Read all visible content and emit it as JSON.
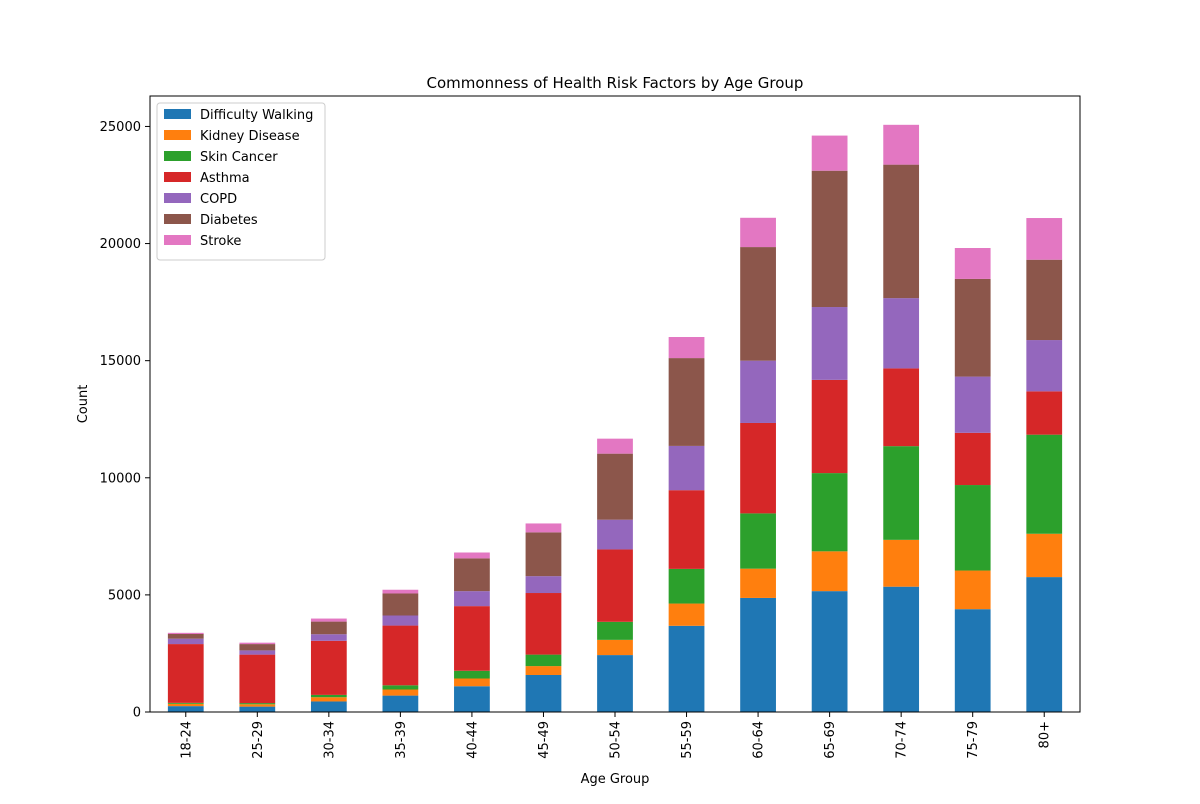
{
  "chart_data": {
    "type": "bar",
    "stacked": true,
    "title": "Commonness of Health Risk Factors by Age Group",
    "xlabel": "Age Group",
    "ylabel": "Count",
    "ylim": [
      0,
      26300
    ],
    "yticks": [
      0,
      5000,
      10000,
      15000,
      20000,
      25000
    ],
    "grid": false,
    "legend_position": "top-left",
    "categories": [
      "18-24",
      "25-29",
      "30-34",
      "35-39",
      "40-44",
      "45-49",
      "50-54",
      "55-59",
      "60-64",
      "65-69",
      "70-74",
      "75-79",
      "80+"
    ],
    "series": [
      {
        "name": "Difficulty Walking",
        "color": "#1f77b4",
        "values": [
          250,
          230,
          450,
          700,
          1100,
          1580,
          2430,
          3680,
          4870,
          5160,
          5350,
          4390,
          5760
        ]
      },
      {
        "name": "Kidney Disease",
        "color": "#ff7f0e",
        "values": [
          100,
          100,
          180,
          260,
          330,
          380,
          650,
          950,
          1250,
          1700,
          2000,
          1650,
          1850
        ]
      },
      {
        "name": "Skin Cancer",
        "color": "#2ca02c",
        "values": [
          40,
          50,
          100,
          180,
          330,
          490,
          770,
          1480,
          2360,
          3340,
          4000,
          3650,
          4230
        ]
      },
      {
        "name": "Asthma",
        "color": "#d62728",
        "values": [
          2510,
          2070,
          2310,
          2550,
          2760,
          2630,
          3090,
          3360,
          3860,
          3980,
          3320,
          2230,
          1850
        ]
      },
      {
        "name": "COPD",
        "color": "#9467bd",
        "values": [
          230,
          180,
          280,
          430,
          640,
          720,
          1270,
          1890,
          2660,
          3110,
          3000,
          2400,
          2190
        ]
      },
      {
        "name": "Diabetes",
        "color": "#8c564b",
        "values": [
          200,
          270,
          540,
          940,
          1400,
          1870,
          2820,
          3750,
          4850,
          5820,
          5700,
          4170,
          3430
        ]
      },
      {
        "name": "Stroke",
        "color": "#e377c2",
        "values": [
          50,
          60,
          130,
          160,
          250,
          380,
          640,
          900,
          1250,
          1500,
          1700,
          1320,
          1780
        ]
      }
    ]
  }
}
